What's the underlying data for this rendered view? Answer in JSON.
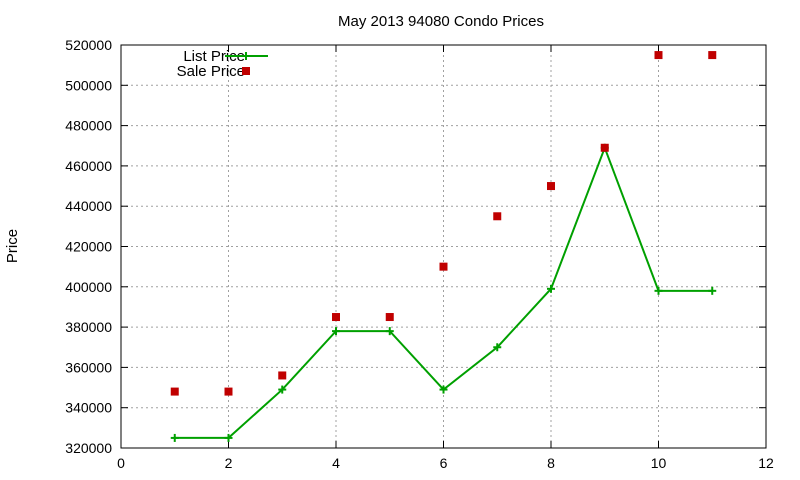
{
  "chart_data": {
    "type": "line",
    "title": "May 2013 94080 Condo Prices",
    "xlabel": "",
    "ylabel": "Price",
    "xlim": [
      0,
      12
    ],
    "ylim": [
      320000,
      520000
    ],
    "xticks": [
      0,
      2,
      4,
      6,
      8,
      10,
      12
    ],
    "yticks": [
      320000,
      340000,
      360000,
      380000,
      400000,
      420000,
      440000,
      460000,
      480000,
      500000,
      520000
    ],
    "grid": true,
    "legend_position": "top-left",
    "series": [
      {
        "name": "List Price",
        "kind": "line-with-plus-markers",
        "color": "#00a000",
        "x": [
          1,
          2,
          3,
          4,
          5,
          6,
          7,
          8,
          9,
          10,
          11
        ],
        "values": [
          325000,
          325000,
          349000,
          378000,
          378000,
          349000,
          370000,
          399000,
          469000,
          398000,
          398000
        ]
      },
      {
        "name": "Sale Price",
        "kind": "square-markers",
        "color": "#c00000",
        "x": [
          1,
          2,
          3,
          4,
          5,
          6,
          7,
          8,
          9,
          10,
          11
        ],
        "values": [
          348000,
          348000,
          356000,
          385000,
          385000,
          410000,
          435000,
          450000,
          469000,
          515000,
          515000
        ]
      }
    ]
  }
}
